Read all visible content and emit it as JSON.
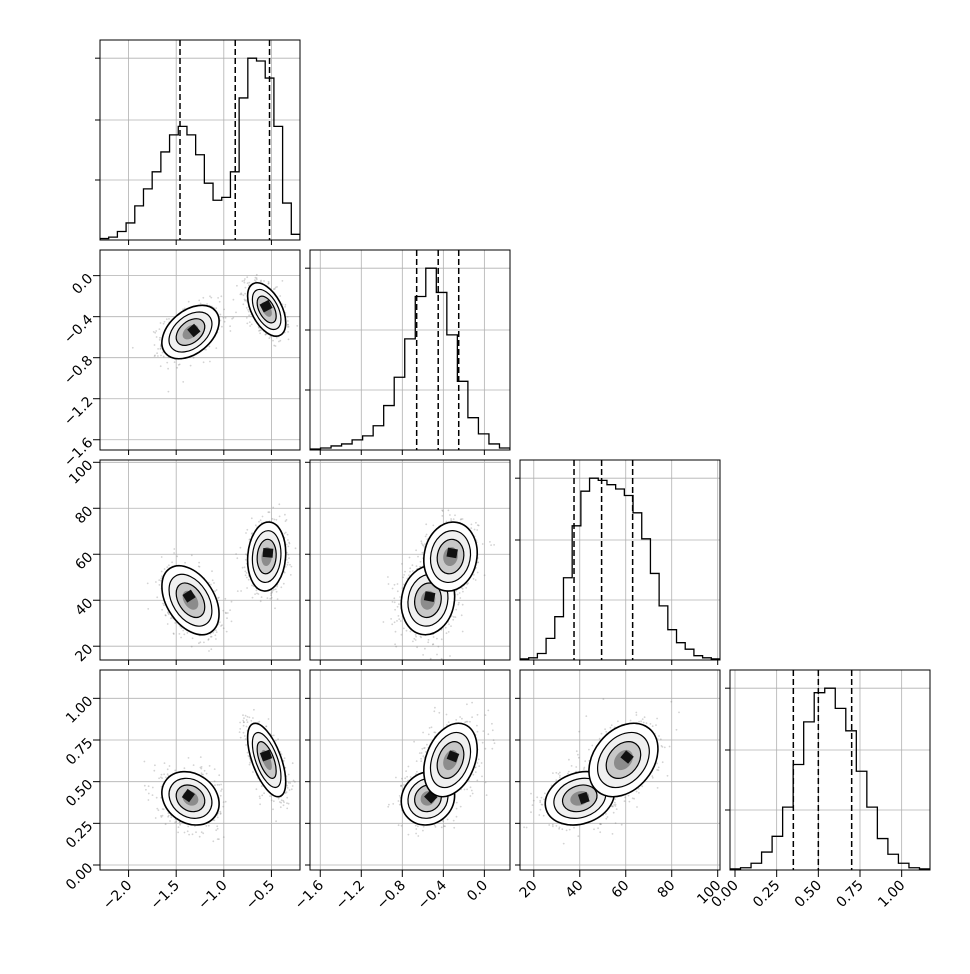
{
  "chart_data": {
    "type": "corner",
    "style": {
      "line_color": "#000000",
      "grid_color": "#b0b0b0",
      "scatter_color": "#808080",
      "background": "#ffffff"
    },
    "grid": true,
    "parameters": [
      {
        "index": 0,
        "range": [
          -2.3,
          -0.2
        ],
        "ticks": [
          -2.0,
          -1.5,
          -1.0,
          -0.5
        ],
        "tick_labels": [
          "−2.0",
          "−1.5",
          "−1.0",
          "−0.5"
        ],
        "quantiles": [
          -1.46,
          -0.88,
          -0.52
        ]
      },
      {
        "index": 1,
        "range": [
          -1.7,
          0.25
        ],
        "ticks": [
          -1.6,
          -1.2,
          -0.8,
          -0.4,
          0.0
        ],
        "tick_labels": [
          "−1.6",
          "−1.2",
          "−0.8",
          "−0.4",
          "0.0"
        ],
        "quantiles": [
          -0.66,
          -0.45,
          -0.25
        ]
      },
      {
        "index": 2,
        "range": [
          14,
          101
        ],
        "ticks": [
          20,
          40,
          60,
          80,
          100
        ],
        "tick_labels": [
          "20",
          "40",
          "60",
          "80",
          "100"
        ],
        "quantiles": [
          37.5,
          49.5,
          63.0
        ]
      },
      {
        "index": 3,
        "range": [
          -0.03,
          1.17
        ],
        "ticks": [
          0.0,
          0.25,
          0.5,
          0.75,
          1.0
        ],
        "tick_labels": [
          "0.00",
          "0.25",
          "0.50",
          "0.75",
          "1.00"
        ],
        "quantiles": [
          0.35,
          0.5,
          0.7
        ]
      }
    ],
    "histograms": [
      {
        "param": 0,
        "values": [
          0.5,
          1,
          3,
          6,
          12,
          18,
          24,
          31,
          37,
          40,
          37,
          30,
          20,
          14,
          15,
          24,
          50,
          64,
          63,
          57,
          40,
          13,
          2
        ]
      },
      {
        "param": 1,
        "values": [
          0.5,
          1,
          2,
          3,
          5,
          7,
          12,
          22,
          36,
          55,
          76,
          90,
          78,
          57,
          34,
          16,
          8,
          3,
          1
        ]
      },
      {
        "param": 2,
        "values": [
          0.5,
          1,
          3,
          10,
          20,
          38,
          62,
          78,
          84,
          83,
          81,
          79,
          76,
          68,
          56,
          40,
          25,
          14,
          8,
          5,
          2,
          1,
          0.5
        ]
      },
      {
        "param": 3,
        "values": [
          0.5,
          1,
          3,
          8,
          15,
          28,
          47,
          66,
          79,
          81,
          72,
          62,
          44,
          28,
          14,
          7,
          3,
          1,
          0.5
        ]
      }
    ],
    "clusters": [
      {
        "weight": 0.5,
        "mean": [
          -1.35,
          -0.55,
          40,
          0.4
        ],
        "sd": [
          0.15,
          0.13,
          7.5,
          0.08
        ],
        "corr": [
          [
            0,
            1,
            0.4
          ],
          [
            0,
            2,
            -0.4
          ],
          [
            0,
            3,
            -0.2
          ],
          [
            1,
            2,
            0.1
          ],
          [
            1,
            3,
            0.1
          ],
          [
            2,
            3,
            0.2
          ]
        ]
      },
      {
        "weight": 0.5,
        "mean": [
          -0.55,
          -0.33,
          59,
          0.63
        ],
        "sd": [
          0.1,
          0.13,
          7.5,
          0.11
        ],
        "corr": [
          [
            0,
            1,
            -0.5
          ],
          [
            0,
            2,
            0.1
          ],
          [
            0,
            3,
            -0.6
          ],
          [
            1,
            2,
            0.1
          ],
          [
            1,
            3,
            0.3
          ],
          [
            2,
            3,
            0.3
          ]
        ]
      }
    ]
  }
}
